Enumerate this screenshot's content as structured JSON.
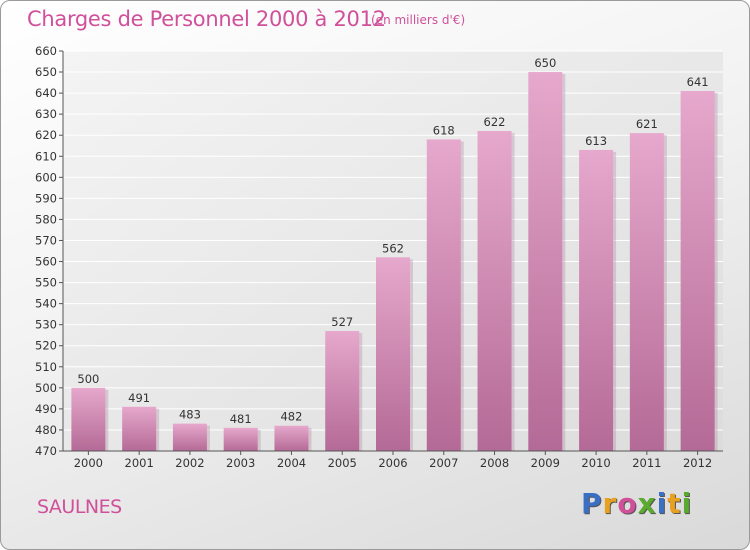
{
  "header": {
    "title": "Charges de Personnel 2000 à 2012",
    "subtitle": "(en milliers d'€)"
  },
  "footer": {
    "city": "SAULNES",
    "brand": "Proxiti"
  },
  "colors": {
    "title": "#d0509a",
    "bar_top": "#e6a8cc",
    "bar_bottom": "#b46a96",
    "grid": "#ffffff",
    "brand_letters": [
      "#3b6fc4",
      "#e8a020",
      "#d0509a",
      "#5aaa30",
      "#3b6fc4",
      "#e8a020",
      "#5aaa30"
    ]
  },
  "chart_data": {
    "type": "bar",
    "categories": [
      "2000",
      "2001",
      "2002",
      "2003",
      "2004",
      "2005",
      "2006",
      "2007",
      "2008",
      "2009",
      "2010",
      "2011",
      "2012"
    ],
    "values": [
      500,
      491,
      483,
      481,
      482,
      527,
      562,
      618,
      622,
      650,
      613,
      621,
      641
    ],
    "title": "Charges de Personnel 2000 à 2012",
    "ylim": [
      470,
      660
    ],
    "yticks": [
      470,
      480,
      490,
      500,
      510,
      520,
      530,
      540,
      550,
      560,
      570,
      580,
      590,
      600,
      610,
      620,
      630,
      640,
      650,
      660
    ],
    "grid": true,
    "data_labels": true
  }
}
